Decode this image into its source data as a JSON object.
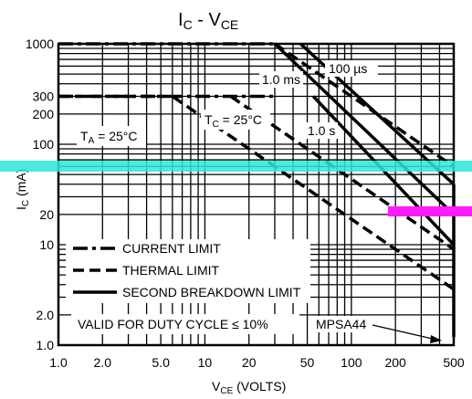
{
  "chart_data": {
    "type": "line",
    "title": {
      "main": "I",
      "sub1": "C",
      "mid": " - V",
      "sub2": "CE"
    },
    "xlabel": {
      "main": "V",
      "sub": "CE",
      "rest": " (VOLTS)"
    },
    "ylabel": {
      "main": "I",
      "sub": "C",
      "rest": " (mA)"
    },
    "x_scale": "log",
    "y_scale": "log",
    "xlim": [
      1,
      500
    ],
    "ylim": [
      1,
      1000
    ],
    "grid": true,
    "x_ticks": [
      {
        "v": 1,
        "t": "1.0"
      },
      {
        "v": 2,
        "t": "2.0"
      },
      {
        "v": 5,
        "t": "5.0"
      },
      {
        "v": 10,
        "t": "10"
      },
      {
        "v": 20,
        "t": "20"
      },
      {
        "v": 50,
        "t": "50"
      },
      {
        "v": 100,
        "t": "100"
      },
      {
        "v": 200,
        "t": "200"
      },
      {
        "v": 500,
        "t": "500"
      }
    ],
    "y_ticks": [
      {
        "v": 1,
        "t": "1.0"
      },
      {
        "v": 2,
        "t": "2.0"
      },
      {
        "v": 10,
        "t": "10"
      },
      {
        "v": 20,
        "t": "20"
      },
      {
        "v": 100,
        "t": "100"
      },
      {
        "v": 200,
        "t": "200"
      },
      {
        "v": 300,
        "t": "300"
      },
      {
        "v": 1000,
        "t": "1000"
      }
    ],
    "series": [
      {
        "style": "dashdot",
        "points": [
          [
            1,
            1000
          ],
          [
            30,
            1000
          ]
        ]
      },
      {
        "style": "dashdot",
        "points": [
          [
            1,
            300
          ],
          [
            30,
            300
          ]
        ]
      },
      {
        "style": "dashed",
        "points": [
          [
            30,
            1000
          ],
          [
            500,
            60
          ]
        ]
      },
      {
        "style": "dashed",
        "points": [
          [
            1,
            300
          ],
          [
            6,
            300
          ],
          [
            500,
            3.6
          ]
        ]
      },
      {
        "style": "dashed",
        "points": [
          [
            15,
            300
          ],
          [
            500,
            9
          ]
        ]
      },
      {
        "style": "solid",
        "points": [
          [
            30,
            1000
          ],
          [
            500,
            20
          ]
        ]
      },
      {
        "style": "solid",
        "points": [
          [
            45,
            1000
          ],
          [
            500,
            40
          ]
        ]
      },
      {
        "style": "solid",
        "points": [
          [
            55,
            300
          ],
          [
            500,
            10
          ]
        ]
      },
      {
        "style": "solid",
        "points": [
          [
            500,
            1.2
          ],
          [
            500,
            40
          ]
        ]
      }
    ],
    "annotations": [
      {
        "id": "ann-100us",
        "text": "100 µs"
      },
      {
        "id": "ann-1ms",
        "text": "1.0 ms"
      },
      {
        "id": "ann-1s",
        "text": "1.0 s"
      },
      {
        "id": "ann-tc",
        "main": "T",
        "sub": "C",
        "rest": " = 25°C"
      },
      {
        "id": "ann-ta",
        "main": "T",
        "sub": "A",
        "rest": " = 25°C"
      },
      {
        "id": "ann-mpsa",
        "text": "MPSA44"
      }
    ],
    "legend": {
      "position": "bottom-left",
      "entries": [
        {
          "style": "dashdot",
          "label": "CURRENT LIMIT"
        },
        {
          "style": "dashed",
          "label": "THERMAL LIMIT"
        },
        {
          "style": "solid",
          "label": "SECOND BREAKDOWN LIMIT"
        }
      ],
      "note": "VALID FOR DUTY CYCLE ≤ 10%"
    },
    "highlight_colors": {
      "cyan": "#2de8d8",
      "magenta": "#ff1aff"
    }
  }
}
